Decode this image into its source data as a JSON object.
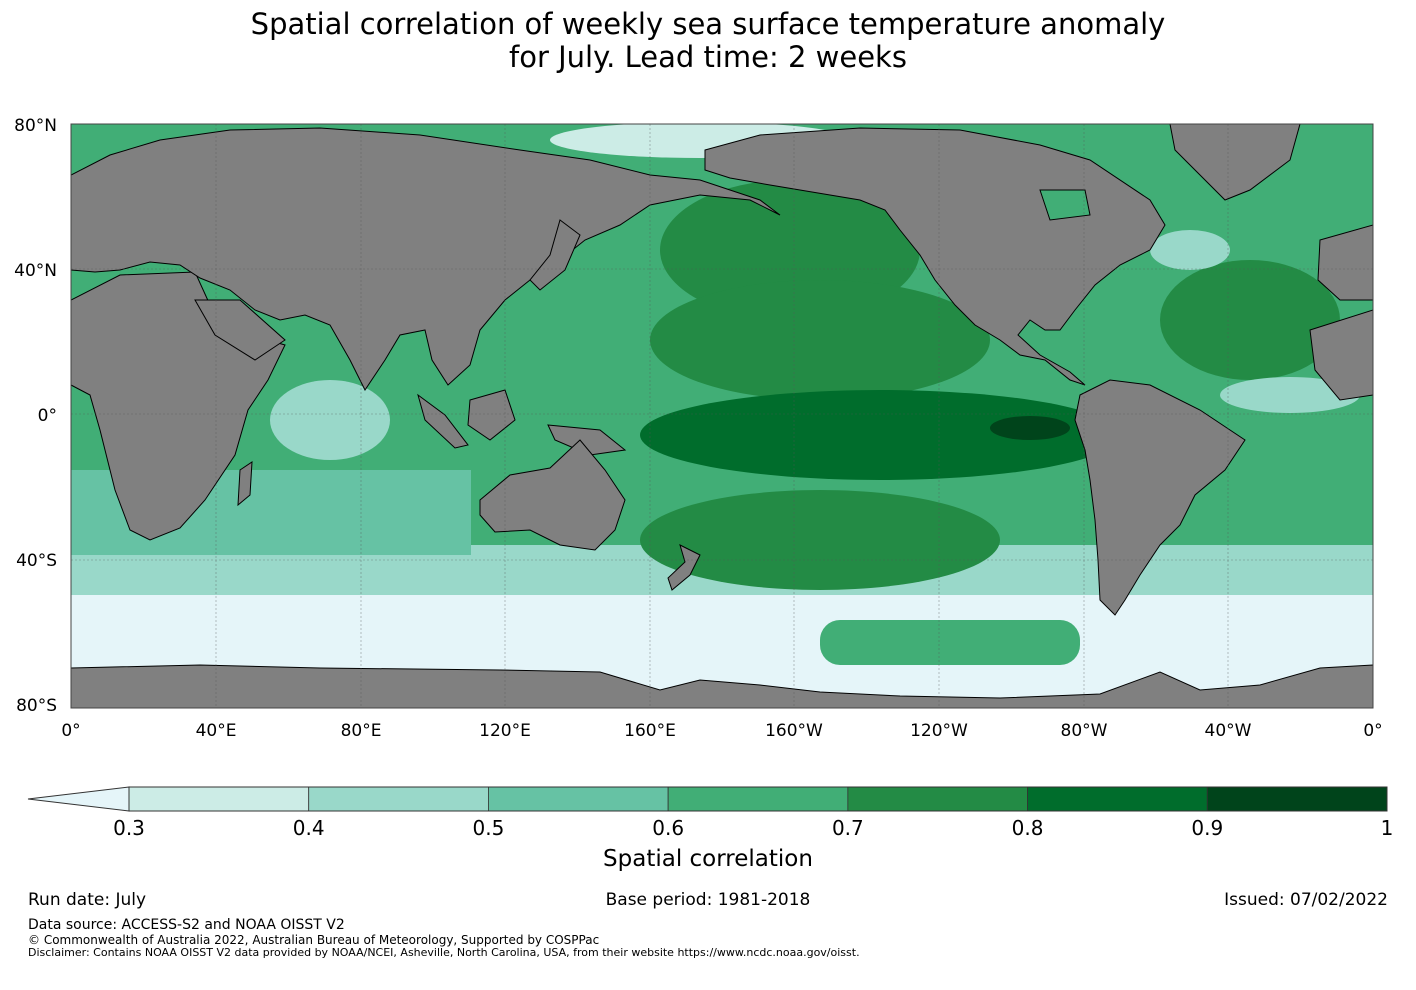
{
  "title_line1": "Spatial correlation of weekly sea surface temperature anomaly",
  "title_line2": "for July. Lead time: 2 weeks",
  "map": {
    "lat_labels": [
      "80°N",
      "40°N",
      "0°",
      "40°S",
      "80°S"
    ],
    "lon_labels": [
      "0°",
      "40°E",
      "80°E",
      "120°E",
      "160°E",
      "160°W",
      "120°W",
      "80°W",
      "40°W",
      "0°"
    ],
    "land_color": "#808080",
    "ocean_colors": [
      "#e5f5f9",
      "#ccece6",
      "#99d8c9",
      "#66c2a4",
      "#41ae76",
      "#238b45",
      "#006d2c",
      "#00441b"
    ]
  },
  "colorbar": {
    "label": "Spatial correlation",
    "ticks": [
      "0.3",
      "0.4",
      "0.5",
      "0.6",
      "0.7",
      "0.8",
      "0.9",
      "1"
    ],
    "colors": [
      "#ccece6",
      "#99d8c9",
      "#66c2a4",
      "#41ae76",
      "#238b45",
      "#006d2c",
      "#00441b"
    ],
    "extend_color": "#e5f5f9"
  },
  "footer": {
    "run_date": "Run date: July",
    "base_period": "Base period: 1981-2018",
    "issued": "Issued: 07/02/2022",
    "data_source": "Data source: ACCESS-S2 and NOAA OISST V2",
    "copyright": "© Commonwealth of Australia 2022, Australian Bureau of Meteorology, Supported by COSPPac",
    "disclaimer": "Disclaimer: Contains NOAA OISST V2 data provided by NOAA/NCEI, Asheville, North Carolina, USA, from their website https://www.ncdc.noaa.gov/oisst."
  }
}
